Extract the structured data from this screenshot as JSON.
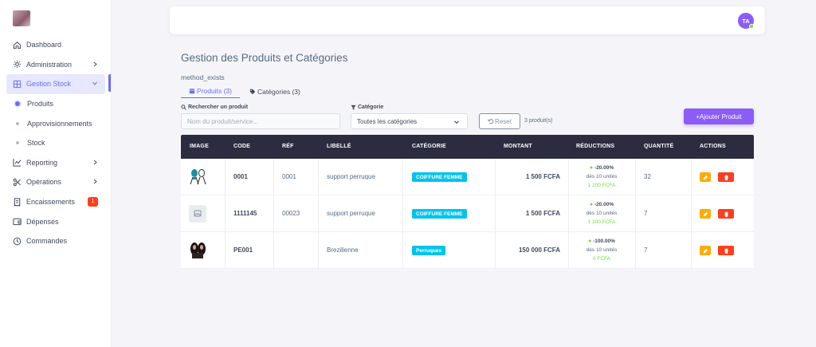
{
  "sidebar": {
    "items": [
      {
        "label": "Dashboard",
        "icon": "home-icon"
      },
      {
        "label": "Administration",
        "icon": "gear-icon"
      },
      {
        "label": "Gestion Stock",
        "icon": "grid-icon"
      },
      {
        "label": "Produits"
      },
      {
        "label": "Approvisionnements"
      },
      {
        "label": "Stock"
      },
      {
        "label": "Reporting",
        "icon": "chart-icon"
      },
      {
        "label": "Opérations",
        "icon": "scissors-icon"
      },
      {
        "label": "Encaissements",
        "icon": "receipt-icon",
        "badge": "1"
      },
      {
        "label": "Dépenses",
        "icon": "wallet-icon"
      },
      {
        "label": "Commandes",
        "icon": "clock-icon"
      }
    ]
  },
  "navbar": {
    "avatar_initials": "TA"
  },
  "page": {
    "title": "Gestion des Produits et Catégories",
    "debug_text": "method_exists",
    "tabs": [
      {
        "label": "Produits (3)"
      },
      {
        "label": "Catégories (3)"
      }
    ]
  },
  "filters": {
    "search_label": "Rechercher un produit",
    "search_placeholder": "Nom du produit/service...",
    "category_label": "Catégorie",
    "category_value": "Toutes les catégories",
    "reset_label": "Reset",
    "count_text": "3 produit(s)",
    "add_label": "+Ajouter Produit"
  },
  "table": {
    "headers": [
      "IMAGE",
      "CODE",
      "RÉF",
      "LIBELLÉ",
      "CATÉGORIE",
      "MONTANT",
      "RÉDUCTIONS",
      "QUANTITÉ",
      "ACTIONS"
    ],
    "rows": [
      {
        "code": "0001",
        "ref": "0001",
        "label": "support perruque",
        "category": "COIFFURE FEMME",
        "amount": "1 500 FCFA",
        "red_pct": "-20.00%",
        "red_units": "dès 10 unités",
        "red_final": "1 200 FCFA",
        "qty": "32",
        "image": "wig-stand-image"
      },
      {
        "code": "1111145",
        "ref": "00023",
        "label": "support perruque",
        "category": "COIFFURE FEMME",
        "amount": "1 500 FCFA",
        "red_pct": "-20.00%",
        "red_units": "dès 10 unités",
        "red_final": "1 200 FCFA",
        "qty": "7",
        "image": "placeholder-image"
      },
      {
        "code": "PE001",
        "ref": "",
        "label": "Brezilienne",
        "category": "Perruques",
        "amount": "150 000 FCFA",
        "red_pct": "-100.00%",
        "red_units": "dès 10 unités",
        "red_final": "0 FCFA",
        "qty": "7",
        "image": "wig-hair-image"
      }
    ]
  },
  "colors": {
    "accent": "#696cff",
    "button": "#8b5cf6",
    "header": "#2b2c40",
    "category_badge": "#03c3ec",
    "edit": "#ffab00",
    "delete": "#ff3e1d",
    "discount": "#71dd37"
  }
}
